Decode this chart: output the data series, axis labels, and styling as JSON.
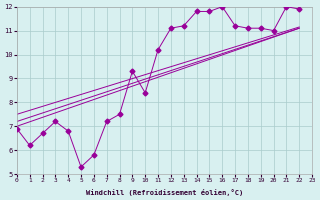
{
  "xlabel": "Windchill (Refroidissement éolien,°C)",
  "background_color": "#d8f0f0",
  "line_color": "#990099",
  "xlim": [
    0,
    23
  ],
  "ylim": [
    5,
    12
  ],
  "xticks": [
    0,
    1,
    2,
    3,
    4,
    5,
    6,
    7,
    8,
    9,
    10,
    11,
    12,
    13,
    14,
    15,
    16,
    17,
    18,
    19,
    20,
    21,
    22,
    23
  ],
  "yticks": [
    5,
    6,
    7,
    8,
    9,
    10,
    11,
    12
  ],
  "main_x": [
    0,
    1,
    2,
    3,
    4,
    5,
    6,
    7,
    8,
    9,
    10,
    11,
    12,
    13,
    14,
    15,
    16,
    17,
    18,
    19,
    20,
    21,
    22
  ],
  "main_y": [
    6.9,
    6.2,
    6.7,
    7.2,
    6.8,
    5.3,
    5.8,
    7.2,
    7.5,
    9.3,
    8.4,
    10.2,
    11.1,
    11.2,
    11.8,
    11.8,
    12.0,
    11.2,
    11.1,
    11.1,
    11.0,
    12.0,
    11.9
  ],
  "trend1_x": [
    0,
    22
  ],
  "trend1_y": [
    7.0,
    11.1
  ],
  "trend2_x": [
    0,
    22
  ],
  "trend2_y": [
    7.2,
    11.1
  ],
  "trend3_x": [
    0,
    22
  ],
  "trend3_y": [
    7.5,
    11.15
  ],
  "grid_color": "#aacccc",
  "marker": "D",
  "marker_size": 2.5
}
